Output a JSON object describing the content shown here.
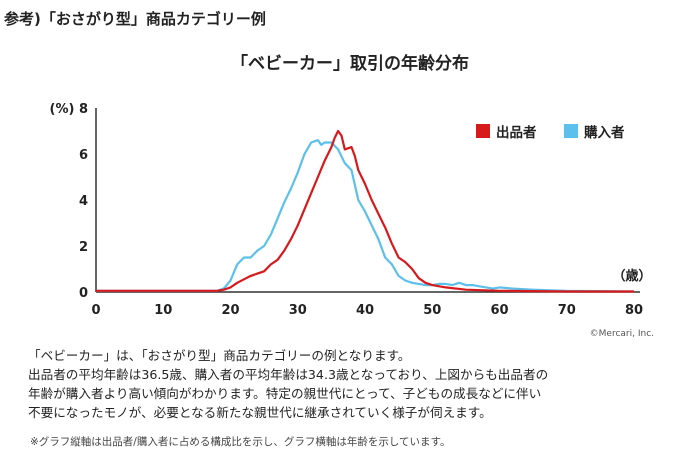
{
  "header": {
    "title": "参考)「おさがり型」商品カテゴリー例"
  },
  "copyright": "©Mercari, Inc.",
  "description": {
    "lines": [
      "「ベビーカー」は、「おさがり型」商品カテゴリーの例となります。",
      "出品者の平均年齢は36.5歳、購入者の平均年齢は34.3歳となっており、上図からも出品者の",
      "年齢が購入者より高い傾向がわかります。特定の親世代にとって、子どもの成長などに伴い",
      "不要になったモノが、必要となる新たな親世代に継承されていく様子が伺えます。"
    ]
  },
  "footnote": "※グラフ縦軸は出品者/購入者に占める構成比を示し、グラフ横軸は年齢を示しています。",
  "colors": {
    "seller": "#d7191c",
    "buyer": "#5bc0eb"
  },
  "chart_data": {
    "type": "line",
    "title": "「ベビーカー」取引の年齢分布",
    "ylabel": "(%)",
    "xlabel": "（歳）",
    "xlim": [
      0,
      80
    ],
    "ylim": [
      0,
      8
    ],
    "xticks": [
      0,
      10,
      20,
      30,
      40,
      50,
      60,
      70,
      80
    ],
    "yticks": [
      0,
      2,
      4,
      6,
      8
    ],
    "grid": false,
    "legend_position": "top-right",
    "series": [
      {
        "name": "出品者",
        "color": "#d7191c",
        "points": [
          [
            0,
            0.05
          ],
          [
            10,
            0.05
          ],
          [
            15,
            0.05
          ],
          [
            18,
            0.05
          ],
          [
            19,
            0.1
          ],
          [
            20,
            0.2
          ],
          [
            21,
            0.4
          ],
          [
            22,
            0.55
          ],
          [
            23,
            0.7
          ],
          [
            24,
            0.8
          ],
          [
            25,
            0.9
          ],
          [
            26,
            1.2
          ],
          [
            27,
            1.4
          ],
          [
            28,
            1.8
          ],
          [
            29,
            2.3
          ],
          [
            30,
            2.9
          ],
          [
            31,
            3.6
          ],
          [
            32,
            4.3
          ],
          [
            33,
            5.0
          ],
          [
            34,
            5.7
          ],
          [
            35,
            6.3
          ],
          [
            35.5,
            6.7
          ],
          [
            36,
            7.0
          ],
          [
            36.5,
            6.8
          ],
          [
            37,
            6.2
          ],
          [
            38,
            6.3
          ],
          [
            38.5,
            5.9
          ],
          [
            39,
            5.3
          ],
          [
            40,
            4.7
          ],
          [
            41,
            4.0
          ],
          [
            42,
            3.4
          ],
          [
            43,
            2.8
          ],
          [
            44,
            2.1
          ],
          [
            45,
            1.5
          ],
          [
            46,
            1.3
          ],
          [
            47,
            1.0
          ],
          [
            48,
            0.6
          ],
          [
            49,
            0.4
          ],
          [
            50,
            0.3
          ],
          [
            52,
            0.2
          ],
          [
            55,
            0.1
          ],
          [
            60,
            0.05
          ],
          [
            70,
            0.02
          ],
          [
            80,
            0.02
          ]
        ]
      },
      {
        "name": "購入者",
        "color": "#5bc0eb",
        "points": [
          [
            0,
            0.05
          ],
          [
            10,
            0.05
          ],
          [
            15,
            0.05
          ],
          [
            18,
            0.05
          ],
          [
            19,
            0.15
          ],
          [
            20,
            0.5
          ],
          [
            21,
            1.2
          ],
          [
            22,
            1.5
          ],
          [
            23,
            1.5
          ],
          [
            24,
            1.8
          ],
          [
            25,
            2.0
          ],
          [
            26,
            2.5
          ],
          [
            27,
            3.2
          ],
          [
            28,
            3.9
          ],
          [
            29,
            4.5
          ],
          [
            30,
            5.2
          ],
          [
            31,
            6.0
          ],
          [
            32,
            6.5
          ],
          [
            33,
            6.6
          ],
          [
            33.5,
            6.4
          ],
          [
            34,
            6.5
          ],
          [
            35,
            6.5
          ],
          [
            36,
            6.2
          ],
          [
            37,
            5.6
          ],
          [
            38,
            5.3
          ],
          [
            39,
            4.0
          ],
          [
            40,
            3.5
          ],
          [
            41,
            2.9
          ],
          [
            42,
            2.3
          ],
          [
            43,
            1.5
          ],
          [
            44,
            1.2
          ],
          [
            45,
            0.7
          ],
          [
            46,
            0.5
          ],
          [
            47,
            0.4
          ],
          [
            48,
            0.35
          ],
          [
            49,
            0.3
          ],
          [
            50,
            0.3
          ],
          [
            51,
            0.35
          ],
          [
            52,
            0.35
          ],
          [
            53,
            0.3
          ],
          [
            54,
            0.4
          ],
          [
            55,
            0.3
          ],
          [
            56,
            0.3
          ],
          [
            57,
            0.25
          ],
          [
            58,
            0.2
          ],
          [
            59,
            0.15
          ],
          [
            60,
            0.2
          ],
          [
            62,
            0.15
          ],
          [
            65,
            0.1
          ],
          [
            70,
            0.05
          ],
          [
            80,
            0.02
          ]
        ]
      }
    ]
  }
}
